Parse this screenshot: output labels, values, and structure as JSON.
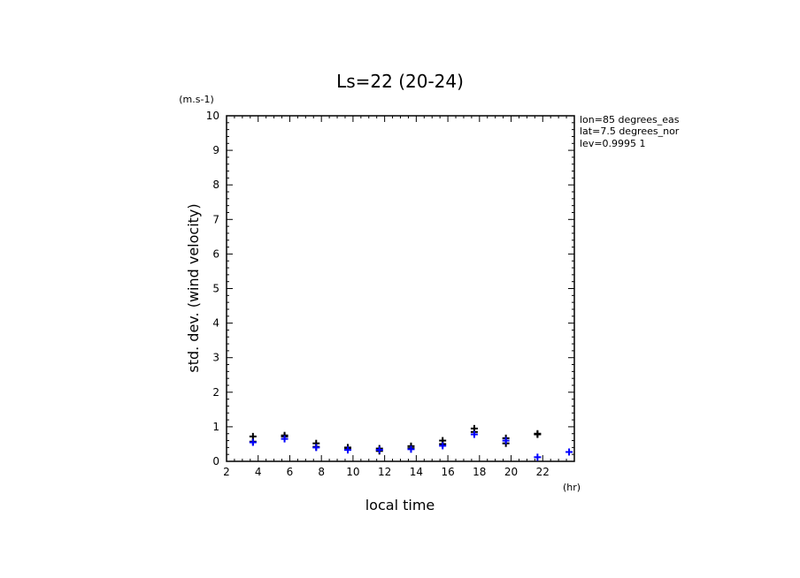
{
  "chart_data": {
    "type": "scatter",
    "title": "Ls=22 (20-24)",
    "xlabel": "local time",
    "ylabel": "std. dev. (wind velocity)",
    "x_unit": "(hr)",
    "y_unit": "(m.s-1)",
    "xlim": [
      2,
      24
    ],
    "ylim": [
      0,
      10
    ],
    "x_ticks": [
      2,
      4,
      6,
      8,
      10,
      12,
      14,
      16,
      18,
      20,
      22
    ],
    "y_ticks": [
      0,
      1,
      2,
      3,
      4,
      5,
      6,
      7,
      8,
      9,
      10
    ],
    "grid": false,
    "annotations": [
      "lon=85 degrees_eas",
      "lat=7.5 degrees_nor",
      "lev=0.9995 1"
    ],
    "series": [
      {
        "color": "#000000",
        "marker": "plus",
        "x": [
          3.67,
          5.67,
          7.67,
          9.67,
          11.67,
          13.67,
          15.67,
          17.67,
          19.67,
          21.67
        ],
        "y": [
          [
            0.72,
            0.57
          ],
          [
            0.75,
            0.72
          ],
          [
            0.52,
            0.42
          ],
          [
            0.4,
            0.35
          ],
          [
            0.37,
            0.3
          ],
          [
            0.44,
            0.38
          ],
          [
            0.6,
            0.5
          ],
          [
            0.95,
            0.85
          ],
          [
            0.67,
            0.52
          ],
          [
            0.8,
            0.78
          ]
        ]
      },
      {
        "color": "#0000ff",
        "marker": "plus",
        "x": [
          3.67,
          5.67,
          7.67,
          9.67,
          11.67,
          13.67,
          15.67,
          17.67,
          19.67,
          21.67,
          23.67
        ],
        "y": [
          0.55,
          0.65,
          0.4,
          0.33,
          0.33,
          0.35,
          0.45,
          0.78,
          0.6,
          0.12,
          0.27
        ]
      }
    ]
  }
}
